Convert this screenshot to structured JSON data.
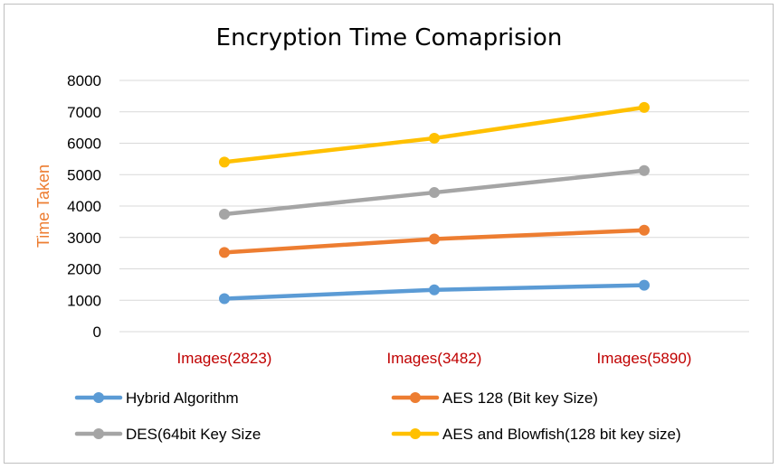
{
  "chart_data": {
    "type": "line",
    "title": "Encryption Time Comaprision",
    "xlabel": "",
    "ylabel": "Time Taken",
    "categories": [
      "Images(2823)",
      "Images(3482)",
      "Images(5890)"
    ],
    "ylim": [
      0,
      8000
    ],
    "yticks": [
      0,
      1000,
      2000,
      3000,
      4000,
      5000,
      6000,
      7000,
      8000
    ],
    "grid": true,
    "legend_position": "bottom",
    "series": [
      {
        "name": "Hybrid Algorithm",
        "color": "#5b9bd5",
        "values": [
          1050,
          1330,
          1480
        ]
      },
      {
        "name": "AES 128 (Bit key Size)",
        "color": "#ed7d31",
        "values": [
          2520,
          2950,
          3230
        ]
      },
      {
        "name": "DES(64bit Key Size",
        "color": "#a5a5a5",
        "values": [
          3740,
          4430,
          5130
        ]
      },
      {
        "name": "AES and Blowfish(128 bit key size)",
        "color": "#ffc000",
        "values": [
          5400,
          6160,
          7140
        ]
      }
    ]
  }
}
